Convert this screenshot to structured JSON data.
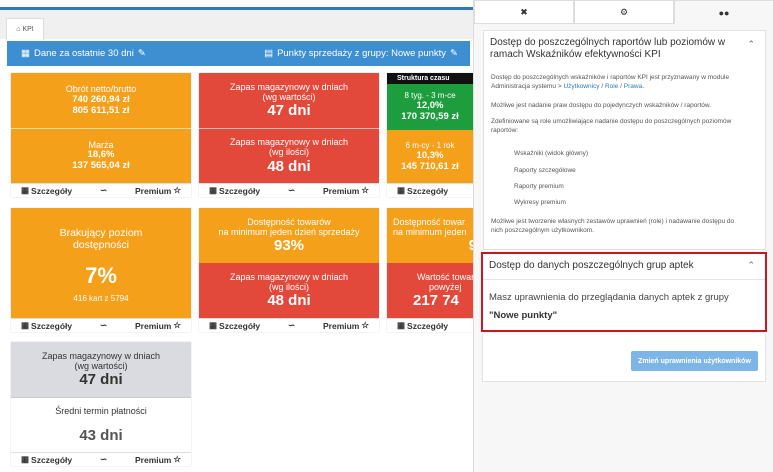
{
  "tab": {
    "label": "KPI"
  },
  "filter": {
    "period": "Dane za ostatnie 30 dni",
    "points": "Punkty sprzedaży z grupy: Nowe punkty"
  },
  "footer": {
    "details": "Szczegóły",
    "premium": "Premium"
  },
  "tiles": {
    "t1": {
      "a_label": "Obrót netto/brutto",
      "a_v1": "740 260,94 zł",
      "a_v2": "805 611,51 zł",
      "b_label": "Marża",
      "b_v1": "18,6%",
      "b_v2": "137 565,04 zł"
    },
    "t2": {
      "a_label1": "Zapas magazynowy w dniach",
      "a_label2": "(wg wartości)",
      "a_val": "47 dni",
      "b_label1": "Zapas magazynowy w dniach",
      "b_label2": "(wg ilości)",
      "b_val": "48 dni"
    },
    "t3": {
      "head": "Struktura czasu",
      "a_label": "8 tyg. - 3 m-ce",
      "a_v1": "12,0%",
      "a_v2": "170 370,59 zł",
      "b_label": "6 m-cy - 1 rok",
      "b_v1": "10,3%",
      "b_v2": "145 710,61 zł"
    },
    "t4": {
      "label1": "Brakujący poziom",
      "label2": "dostępności",
      "val": "7%",
      "sub": "416 kart z 5794"
    },
    "t5": {
      "a_label1": "Dostępność towarów",
      "a_label2": "na minimum jeden dzień sprzedaży",
      "a_val": "93%",
      "b_label1": "Zapas magazynowy w dniach",
      "b_label2": "(wg ilości)",
      "b_val": "48 dni"
    },
    "t6": {
      "a_label1": "Dostępność towar",
      "a_label2": "na minimum jeden",
      "a_val": "9",
      "b_label1": "Wartość towar",
      "b_label2": "powyżej",
      "b_val": "217 74"
    },
    "t7": {
      "a_label1": "Zapas magazynowy w dniach",
      "a_label2": "(wg wartości)",
      "a_val": "47 dni",
      "b_label": "Średni termin płatności",
      "b_val": "43 dni"
    }
  },
  "panel": {
    "card1": {
      "title": "Dostęp do poszczególnych raportów lub poziomów w ramach Wskaźników efektywności KPI",
      "p1a": "Dostęp do poszczególnych wskaźników i raportów KPI jest przyznawany w module",
      "p1b": "Administracja systemu > ",
      "link_users": "Użytkownicy",
      "sep": " / ",
      "link_roles": "Role",
      "link_rights": "Prawa",
      "p1end": ".",
      "p2": "Możliwe jest nadanie praw dostępu do pojedynczych wskaźników / raportów.",
      "p3a": "Zdefiniowane są role umożliwiające nadanie dostępu do poszczególnych poziomów",
      "p3b": "raportów:",
      "roles": [
        "Wskaźniki (widok główny)",
        "Raporty szczegółowe",
        "Raporty premium",
        "Wykresy premium"
      ],
      "p4a": "Możliwe jest tworzenie własnych zestawów uprawnień (role) i nadawanie dostępu do",
      "p4b": "nich poszczególnym użytkownikom."
    },
    "card2": {
      "title": "Dostęp do danych poszczególnych grup aptek",
      "line": "Masz uprawnienia do przeglądania danych aptek z grupy",
      "group": "\"Nowe punkty\""
    },
    "button": "Zmień uprawnienia użytkowników"
  }
}
